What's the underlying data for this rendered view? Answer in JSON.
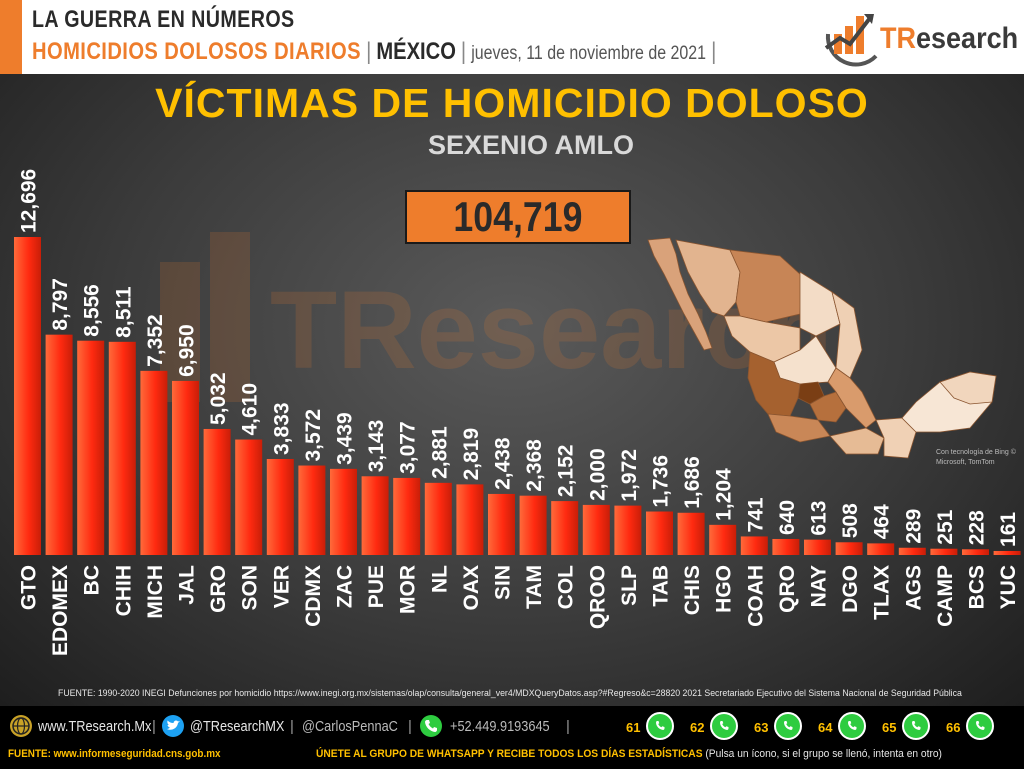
{
  "header": {
    "line1": "LA GUERRA EN NÚMEROS",
    "line2_main": "HOMICIDIOS DOLOSOS DIARIOS",
    "line2_country": "MÉXICO",
    "line2_date": "jueves, 11 de noviembre de 2021",
    "separator": "|"
  },
  "logo": {
    "text_a": "TR",
    "text_b": "esearch"
  },
  "watermark": {
    "text": "TResearch"
  },
  "total": {
    "value": "104,719"
  },
  "map": {
    "credit": "Con tecnología de Bing © Microsoft, TomTom"
  },
  "chart_data": {
    "type": "bar",
    "title": "VÍCTIMAS DE HOMICIDIO DOLOSO",
    "subtitle": "SEXENIO AMLO",
    "xlabel": "",
    "ylabel": "",
    "categories": [
      "GTO",
      "EDOMEX",
      "BC",
      "CHIH",
      "MICH",
      "JAL",
      "GRO",
      "SON",
      "VER",
      "CDMX",
      "ZAC",
      "PUE",
      "MOR",
      "NL",
      "OAX",
      "SIN",
      "TAM",
      "COL",
      "QROO",
      "SLP",
      "TAB",
      "CHIS",
      "HGO",
      "COAH",
      "QRO",
      "NAY",
      "DGO",
      "TLAX",
      "AGS",
      "CAMP",
      "BCS",
      "YUC"
    ],
    "values": [
      12696,
      8797,
      8556,
      8511,
      7352,
      6950,
      5032,
      4610,
      3833,
      3572,
      3439,
      3143,
      3077,
      2881,
      2819,
      2438,
      2368,
      2152,
      2000,
      1972,
      1736,
      1686,
      1204,
      741,
      640,
      613,
      508,
      464,
      289,
      251,
      228,
      161
    ],
    "labels": [
      "12,696",
      "8,797",
      "8,556",
      "8,511",
      "7,352",
      "6,950",
      "5,032",
      "4,610",
      "3,833",
      "3,572",
      "3,439",
      "3,143",
      "3,077",
      "2,881",
      "2,819",
      "2,438",
      "2,368",
      "2,152",
      "2,000",
      "1,972",
      "1,736",
      "1,686",
      "1,204",
      "741",
      "640",
      "613",
      "508",
      "464",
      "289",
      "251",
      "228",
      "161"
    ],
    "ylim": [
      0,
      12696
    ],
    "grid": false,
    "bar_color": "#ff3a1a"
  },
  "source_note": "FUENTE: 1990-2020 INEGI Defunciones por homicidio https://www.inegi.org.mx/sistemas/olap/consulta/general_ver4/MDXQueryDatos.asp?#Regreso&c=28820   2021 Secretariado Ejecutivo del Sistema Nacional de Seguridad Pública",
  "footer": {
    "website": "www.TResearch.Mx",
    "website_brand": "TResearch",
    "twitter": "@TResearchMX",
    "twitter_person": "@CarlosPennaC",
    "phone": "+52.449.9193645",
    "whatsapp_groups": [
      "61",
      "62",
      "63",
      "64",
      "65",
      "66"
    ],
    "source": "FUENTE: www.informeseguridad.cns.gob.mx",
    "cta_main": "ÚNETE AL GRUPO DE WHATSAPP Y RECIBE TODOS LOS DÍAS ESTADÍSTICAS",
    "cta_note": "(Pulsa un ícono, si el grupo se llenó, intenta en otro)"
  },
  "colors": {
    "accent": "#ee7d2c",
    "title": "#ffc000",
    "bar": "#ff3a1a",
    "whatsapp": "#2ecc40"
  }
}
